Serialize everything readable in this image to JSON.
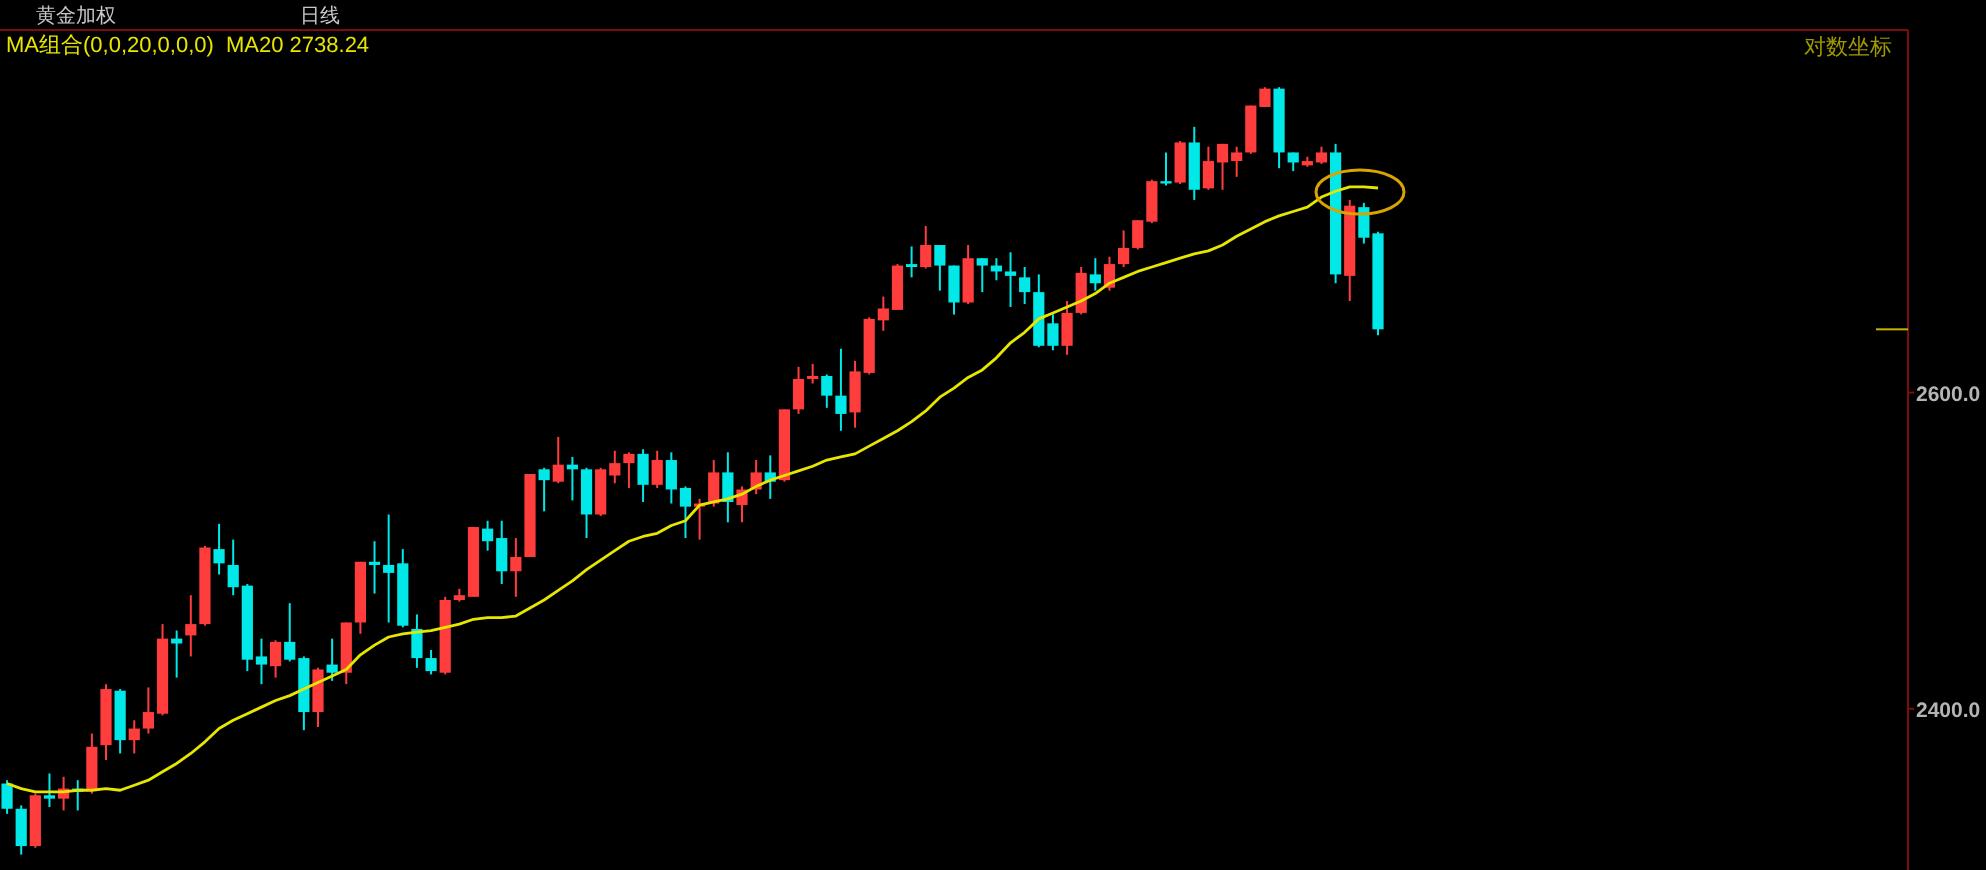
{
  "chart_data": {
    "type": "candlestick",
    "title": "黄金加权",
    "subtitle": "日线",
    "annotations": [
      "MA组合(0,0,20,0,0,0)",
      "对数坐标"
    ],
    "categories": [
      null,
      null,
      null,
      null,
      null,
      null,
      null,
      null,
      null,
      null,
      null,
      null,
      null,
      null,
      null,
      null,
      null,
      null,
      null,
      null,
      null,
      null,
      null,
      null,
      null,
      null,
      null,
      null,
      null,
      null,
      null,
      null,
      null,
      null,
      null,
      null,
      null,
      null,
      null,
      null,
      null,
      null,
      null,
      null,
      null,
      null,
      null,
      null,
      null,
      null,
      null,
      null,
      null,
      null,
      null,
      null,
      null,
      null,
      null,
      null,
      null,
      null,
      null,
      null,
      null,
      null,
      null,
      null,
      null,
      null,
      null,
      null,
      null,
      null,
      null,
      null,
      null,
      null,
      null,
      null,
      null,
      null,
      null,
      null,
      null,
      null,
      null,
      null,
      null,
      null,
      null,
      null,
      null,
      null,
      null,
      null,
      null,
      null,
      null,
      null,
      null,
      null,
      null,
      null,
      null,
      null,
      null,
      null,
      null,
      null,
      null,
      null,
      null,
      null,
      null,
      null,
      null,
      null,
      null,
      null,
      null,
      null,
      null,
      null,
      null,
      null,
      null,
      null,
      null,
      null,
      null,
      null,
      null,
      null,
      null
    ],
    "ohlc": [
      [
        2355,
        2357,
        2337,
        2340
      ],
      [
        2340,
        2342,
        2313,
        2318
      ],
      [
        2318,
        2349,
        2317,
        2348
      ],
      [
        2348,
        2361,
        2341,
        2346
      ],
      [
        2346,
        2359,
        2339,
        2352
      ],
      [
        2352,
        2357,
        2339,
        2350
      ],
      [
        2351,
        2385,
        2349,
        2377
      ],
      [
        2378,
        2415,
        2369,
        2412
      ],
      [
        2411,
        2412,
        2373,
        2381
      ],
      [
        2381,
        2393,
        2373,
        2388
      ],
      [
        2388,
        2413,
        2385,
        2398
      ],
      [
        2397,
        2452,
        2396,
        2443
      ],
      [
        2443,
        2448,
        2419,
        2440
      ],
      [
        2445,
        2470,
        2432,
        2452
      ],
      [
        2452,
        2501,
        2451,
        2500
      ],
      [
        2499,
        2515,
        2483,
        2490
      ],
      [
        2489,
        2505,
        2470,
        2475
      ],
      [
        2476,
        2477,
        2423,
        2430
      ],
      [
        2432,
        2443,
        2415,
        2427
      ],
      [
        2426,
        2442,
        2419,
        2441
      ],
      [
        2441,
        2465,
        2429,
        2430
      ],
      [
        2431,
        2432,
        2387,
        2398
      ],
      [
        2398,
        2425,
        2389,
        2424
      ],
      [
        2427,
        2443,
        2417,
        2422
      ],
      [
        2422,
        2453,
        2415,
        2453
      ],
      [
        2453,
        2491,
        2446,
        2491
      ],
      [
        2491,
        2504,
        2471,
        2489
      ],
      [
        2489,
        2521,
        2453,
        2484
      ],
      [
        2490,
        2499,
        2450,
        2451
      ],
      [
        2449,
        2458,
        2425,
        2431
      ],
      [
        2431,
        2436,
        2421,
        2423
      ],
      [
        2422,
        2469,
        2421,
        2467
      ],
      [
        2467,
        2474,
        2466,
        2470
      ],
      [
        2469,
        2513,
        2469,
        2513
      ],
      [
        2512,
        2517,
        2498,
        2504
      ],
      [
        2506,
        2517,
        2477,
        2485
      ],
      [
        2485,
        2506,
        2469,
        2494
      ],
      [
        2494,
        2547,
        2494,
        2547
      ],
      [
        2550,
        2551,
        2523,
        2543
      ],
      [
        2542,
        2571,
        2541,
        2553
      ],
      [
        2553,
        2558,
        2530,
        2550
      ],
      [
        2550,
        2551,
        2506,
        2521
      ],
      [
        2521,
        2551,
        2520,
        2550
      ],
      [
        2546,
        2562,
        2541,
        2554
      ],
      [
        2554,
        2561,
        2538,
        2560
      ],
      [
        2560,
        2563,
        2529,
        2540
      ],
      [
        2540,
        2562,
        2538,
        2556
      ],
      [
        2556,
        2561,
        2528,
        2537
      ],
      [
        2538,
        2539,
        2506,
        2526
      ],
      [
        2526,
        2531,
        2505,
        2528
      ],
      [
        2528,
        2556,
        2526,
        2548
      ],
      [
        2548,
        2561,
        2516,
        2529
      ],
      [
        2527,
        2539,
        2516,
        2537
      ],
      [
        2537,
        2556,
        2534,
        2548
      ],
      [
        2548,
        2559,
        2531,
        2542
      ],
      [
        2543,
        2589,
        2542,
        2589
      ],
      [
        2589,
        2617,
        2586,
        2609
      ],
      [
        2609,
        2619,
        2606,
        2611
      ],
      [
        2611,
        2612,
        2590,
        2598
      ],
      [
        2598,
        2629,
        2575,
        2586
      ],
      [
        2587,
        2621,
        2577,
        2614
      ],
      [
        2613,
        2650,
        2612,
        2649
      ],
      [
        2648,
        2664,
        2641,
        2656
      ],
      [
        2655,
        2686,
        2655,
        2685
      ],
      [
        2686,
        2698,
        2677,
        2684
      ],
      [
        2684,
        2712,
        2683,
        2699
      ],
      [
        2699,
        2699,
        2668,
        2685
      ],
      [
        2685,
        2685,
        2652,
        2660
      ],
      [
        2660,
        2699,
        2659,
        2690
      ],
      [
        2690,
        2690,
        2667,
        2685
      ],
      [
        2685,
        2690,
        2675,
        2681
      ],
      [
        2681,
        2694,
        2657,
        2678
      ],
      [
        2677,
        2684,
        2659,
        2667
      ],
      [
        2667,
        2679,
        2630,
        2631
      ],
      [
        2646,
        2652,
        2628,
        2631
      ],
      [
        2631,
        2661,
        2625,
        2653
      ],
      [
        2653,
        2684,
        2652,
        2680
      ],
      [
        2679,
        2690,
        2668,
        2673
      ],
      [
        2670,
        2691,
        2668,
        2686
      ],
      [
        2686,
        2709,
        2684,
        2697
      ],
      [
        2697,
        2716,
        2696,
        2716
      ],
      [
        2715,
        2744,
        2714,
        2743
      ],
      [
        2743,
        2763,
        2740,
        2742
      ],
      [
        2742,
        2771,
        2741,
        2770
      ],
      [
        2770,
        2781,
        2730,
        2737
      ],
      [
        2738,
        2767,
        2737,
        2757
      ],
      [
        2756,
        2769,
        2737,
        2769
      ],
      [
        2757,
        2767,
        2746,
        2763
      ],
      [
        2763,
        2796,
        2762,
        2796
      ],
      [
        2795,
        2809,
        2795,
        2808
      ],
      [
        2808,
        2809,
        2752,
        2763
      ],
      [
        2763,
        2763,
        2750,
        2756
      ],
      [
        2754,
        2760,
        2753,
        2757
      ],
      [
        2756,
        2767,
        2755,
        2763
      ],
      [
        2763,
        2769,
        2673,
        2679
      ],
      [
        2678,
        2730,
        2661,
        2726
      ],
      [
        2725,
        2728,
        2700,
        2704
      ],
      [
        2707,
        2708,
        2638,
        2642
      ],
      null,
      null,
      null,
      null,
      null,
      null,
      null,
      null,
      null,
      null,
      null,
      null,
      null,
      null,
      null,
      null,
      null,
      null,
      null,
      null,
      null,
      null,
      null,
      null,
      null,
      null,
      null,
      null,
      null,
      null,
      null,
      null,
      null,
      null,
      null,
      null,
      null
    ],
    "colors": [
      "#00e8e8",
      "#00e8e8",
      "#ff3d3d",
      "#00e8e8",
      "#ff3d3d",
      "#00e8e8",
      "#ff3d3d",
      "#ff3d3d",
      "#00e8e8",
      "#ff3d3d",
      "#ff3d3d",
      "#ff3d3d",
      "#00e8e8",
      "#ff3d3d",
      "#ff3d3d",
      "#00e8e8",
      "#00e8e8",
      "#00e8e8",
      "#00e8e8",
      "#ff3d3d",
      "#00e8e8",
      "#00e8e8",
      "#ff3d3d",
      "#00e8e8",
      "#ff3d3d",
      "#ff3d3d",
      "#00e8e8",
      "#00e8e8",
      "#00e8e8",
      "#00e8e8",
      "#00e8e8",
      "#ff3d3d",
      "#ff3d3d",
      "#ff3d3d",
      "#00e8e8",
      "#00e8e8",
      "#ff3d3d",
      "#ff3d3d",
      "#00e8e8",
      "#ff3d3d",
      "#00e8e8",
      "#00e8e8",
      "#ff3d3d",
      "#ff3d3d",
      "#ff3d3d",
      "#00e8e8",
      "#ff3d3d",
      "#00e8e8",
      "#00e8e8",
      "#ff3d3d",
      "#ff3d3d",
      "#00e8e8",
      "#ff3d3d",
      "#ff3d3d",
      "#00e8e8",
      "#ff3d3d",
      "#ff3d3d",
      "#ff3d3d",
      "#00e8e8",
      "#00e8e8",
      "#ff3d3d",
      "#ff3d3d",
      "#ff3d3d",
      "#ff3d3d",
      "#00e8e8",
      "#ff3d3d",
      "#00e8e8",
      "#00e8e8",
      "#ff3d3d",
      "#00e8e8",
      "#00e8e8",
      "#00e8e8",
      "#00e8e8",
      "#00e8e8",
      "#00e8e8",
      "#ff3d3d",
      "#ff3d3d",
      "#00e8e8",
      "#ff3d3d",
      "#ff3d3d",
      "#ff3d3d",
      "#ff3d3d",
      "#00e8e8",
      "#ff3d3d",
      "#00e8e8",
      "#ff3d3d",
      "#ff3d3d",
      "#ff3d3d",
      "#ff3d3d",
      "#ff3d3d",
      "#00e8e8",
      "#00e8e8",
      "#ff3d3d",
      "#ff3d3d",
      "#00e8e8",
      "#ff3d3d",
      "#00e8e8",
      "#00e8e8",
      null,
      null,
      null,
      null,
      null,
      null,
      null,
      null,
      null,
      null,
      null,
      null,
      null,
      null,
      null,
      null,
      null,
      null,
      null,
      null,
      null,
      null,
      null,
      null,
      null,
      null,
      null,
      null,
      null,
      null,
      null,
      null,
      null,
      null,
      null,
      null,
      null
    ],
    "series": [
      {
        "type": "line",
        "name": "MA20 2738.24",
        "color": "#e6e600",
        "values": [
          2355,
          2352,
          2350,
          2350,
          2350,
          2351,
          2351,
          2352,
          2351,
          2354,
          2357,
          2362,
          2367,
          2373,
          2380,
          2388,
          2393,
          2397,
          2401,
          2405,
          2408,
          2412,
          2416,
          2420,
          2424,
          2433,
          2439,
          2444,
          2446,
          2447,
          2448,
          2450,
          2452,
          2455,
          2456,
          2456,
          2457,
          2462,
          2467,
          2473,
          2479,
          2486,
          2492,
          2498,
          2504,
          2507,
          2509,
          2514,
          2517,
          2527,
          2529,
          2531,
          2534,
          2539,
          2543,
          2546,
          2549,
          2552,
          2556,
          2558,
          2560,
          2565,
          2570,
          2575,
          2581,
          2588,
          2597,
          2603,
          2610,
          2615,
          2623,
          2633,
          2640,
          2649,
          2653,
          2657,
          2661,
          2666,
          2673,
          2677,
          2681,
          2684,
          2687,
          2690,
          2693,
          2695,
          2699,
          2705,
          2710,
          2715,
          2719,
          2722,
          2725,
          2732,
          2736,
          2739,
          2739,
          2738.24,
          null,
          null,
          null,
          null,
          null,
          null,
          null,
          null,
          null,
          null,
          null,
          null,
          null,
          null,
          null,
          null,
          null,
          null,
          null,
          null,
          null,
          null,
          null,
          null,
          null,
          null,
          null,
          null,
          null,
          null,
          null,
          null,
          null,
          null,
          null,
          null,
          null
        ]
      }
    ],
    "ylim": [
      2304,
      2850
    ],
    "yticks": [
      {
        "value": 2600,
        "label": "2600.0"
      },
      {
        "value": 2400,
        "label": "2400.0"
      }
    ],
    "log": "y",
    "legend": "top left",
    "tick_labels": "y"
  }
}
